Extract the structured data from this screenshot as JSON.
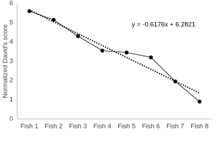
{
  "chart_data": {
    "type": "line",
    "y_label": "Normalized David's score",
    "categories": [
      "Fish 1",
      "Fish 2",
      "Fish 3",
      "Fish 4",
      "Fish 5",
      "Fish 6",
      "Fish 7",
      "Fish 8"
    ],
    "series": [
      {
        "color": "#000000",
        "values": [
          5.6,
          5.15,
          4.3,
          3.55,
          3.45,
          3.2,
          1.95,
          0.9
        ]
      }
    ],
    "trendline": {
      "slope": -0.6176,
      "intercept": 6.2821,
      "color": "#000000",
      "label": "y = -0.6176x + 6.2821"
    },
    "ylim": [
      0,
      6
    ],
    "yticks": [
      0,
      1,
      2,
      3,
      4,
      5,
      6
    ],
    "grid": false
  }
}
